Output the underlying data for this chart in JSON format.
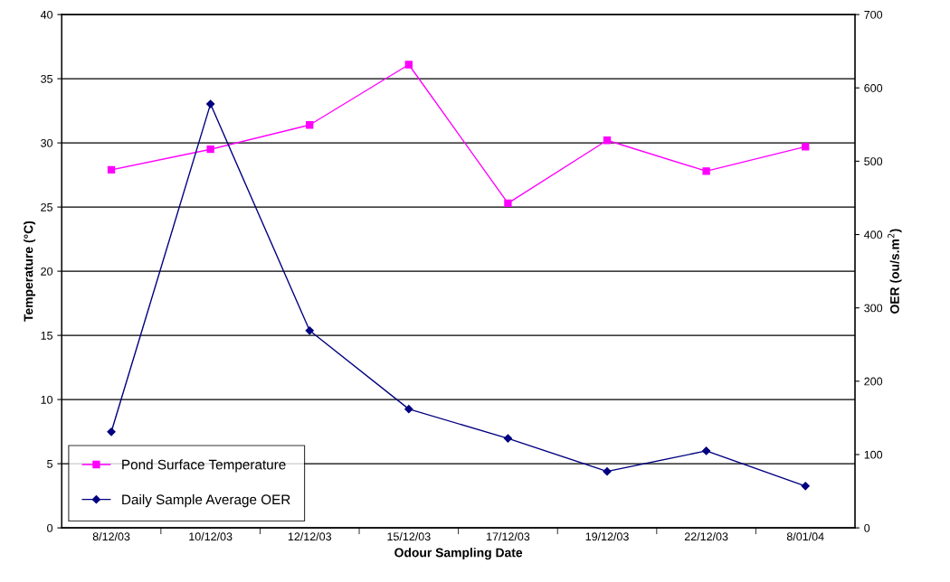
{
  "chart_data": {
    "type": "line",
    "xlabel": "Odour Sampling Date",
    "ylabel": "Temperature (°C)",
    "y2label": "OER (ou/s.m$^{2}$)",
    "categories": [
      "8/12/03",
      "10/12/03",
      "12/12/03",
      "15/12/03",
      "17/12/03",
      "19/12/03",
      "22/12/03",
      "8/01/04"
    ],
    "series": [
      {
        "name": "Pond Surface Temperature",
        "color": "#ff00ff",
        "marker": "square",
        "values": [
          27.9,
          29.5,
          31.4,
          36.1,
          25.3,
          30.2,
          27.8,
          29.7
        ]
      },
      {
        "name": "Daily Sample Average OER",
        "color": "#000080",
        "marker": "diamond",
        "axis": "y2",
        "values": [
          131,
          578,
          269,
          162,
          122,
          77,
          105,
          57
        ]
      }
    ],
    "ylim": [
      0,
      40
    ],
    "yticks": [
      0,
      5,
      10,
      15,
      20,
      25,
      30,
      35,
      40
    ],
    "y2lim": [
      0,
      700
    ],
    "y2ticks": [
      0,
      100,
      200,
      300,
      400,
      500,
      600,
      700
    ],
    "grid": "y",
    "legend": "bottom left"
  }
}
